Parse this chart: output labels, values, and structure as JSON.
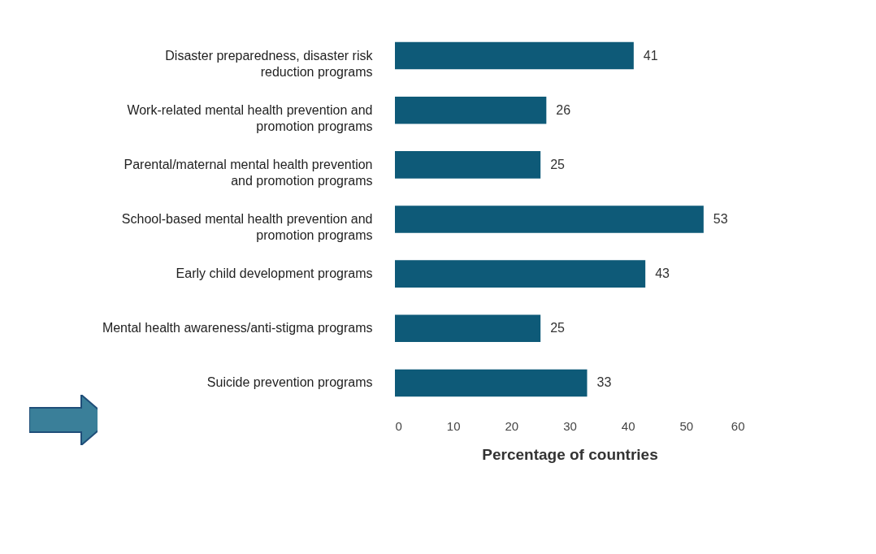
{
  "chart_data": {
    "type": "bar",
    "orientation": "horizontal",
    "categories": [
      "Disaster preparedness, disaster risk reduction programs",
      "Work-related mental health prevention and promotion programs",
      "Parental/maternal mental health prevention and promotion programs",
      "School-based mental health prevention and promotion programs",
      "Early child development programs",
      "Mental health awareness/anti-stigma programs",
      "Suicide prevention programs"
    ],
    "values": [
      41,
      26,
      25,
      53,
      43,
      25,
      33
    ],
    "color": "#0e5a78",
    "xlabel": "Percentage of countries",
    "xlim": [
      0,
      60
    ],
    "xticks": [
      0,
      10,
      20,
      30,
      40,
      50,
      60
    ],
    "data_labels": true,
    "grid": false
  }
}
